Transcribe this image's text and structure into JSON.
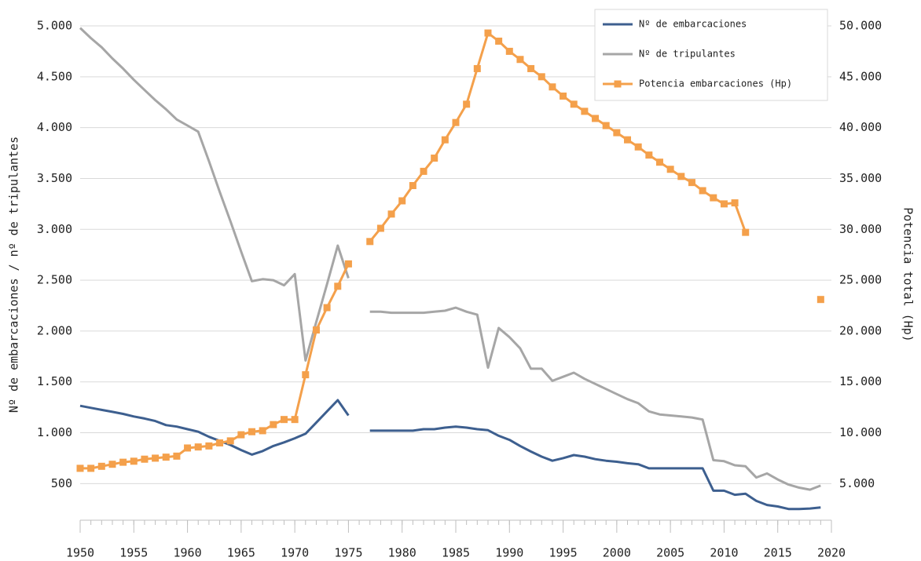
{
  "chart_data": {
    "type": "line",
    "y_label": "Nº de embarcaciones / nº de tripulantes",
    "y2_label": "Potencia total (Hp)",
    "x": [
      1950,
      1951,
      1952,
      1953,
      1954,
      1955,
      1956,
      1957,
      1958,
      1959,
      1960,
      1961,
      1962,
      1963,
      1964,
      1965,
      1966,
      1967,
      1968,
      1969,
      1970,
      1971,
      1972,
      1973,
      1974,
      1975,
      1976,
      1977,
      1978,
      1979,
      1980,
      1981,
      1982,
      1983,
      1984,
      1985,
      1986,
      1987,
      1988,
      1989,
      1990,
      1991,
      1992,
      1993,
      1994,
      1995,
      1996,
      1997,
      1998,
      1999,
      2000,
      2001,
      2002,
      2003,
      2004,
      2005,
      2006,
      2007,
      2008,
      2009,
      2010,
      2011,
      2012,
      2013,
      2014,
      2015,
      2016,
      2017,
      2018,
      2019
    ],
    "xlim": [
      1950,
      2020
    ],
    "xticks": [
      1950,
      1955,
      1960,
      1965,
      1970,
      1975,
      1980,
      1985,
      1990,
      1995,
      2000,
      2005,
      2010,
      2015,
      2020
    ],
    "ylim": [
      140,
      5000
    ],
    "yticks": [
      500,
      {
        "value": 1000,
        "label": "1.000"
      },
      {
        "value": 1500,
        "label": "1.500"
      },
      {
        "value": 2000,
        "label": "2.000"
      },
      {
        "value": 2500,
        "label": "2.500"
      },
      {
        "value": 3000,
        "label": "3.000"
      },
      {
        "value": 3500,
        "label": "3.500"
      },
      {
        "value": 4000,
        "label": "4.000"
      },
      {
        "value": 4500,
        "label": "4.500"
      },
      {
        "value": 5000,
        "label": "5.000"
      }
    ],
    "y2lim": [
      1400,
      50000
    ],
    "y2ticks": [
      {
        "value": 5000,
        "label": "5.000"
      },
      {
        "value": 10000,
        "label": "10.000"
      },
      {
        "value": 15000,
        "label": "15.000"
      },
      {
        "value": 20000,
        "label": "20.000"
      },
      {
        "value": 25000,
        "label": "25.000"
      },
      {
        "value": 30000,
        "label": "30.000"
      },
      {
        "value": 35000,
        "label": "35.000"
      },
      {
        "value": 40000,
        "label": "40.000"
      },
      {
        "value": 45000,
        "label": "45.000"
      },
      {
        "value": 50000,
        "label": "50.000"
      }
    ],
    "grid": true,
    "legend": "top-right",
    "series": [
      {
        "name": "Nº de embarcaciones",
        "color": "#3d5f8f",
        "values": [
          1265,
          1245,
          1225,
          1205,
          1185,
          1160,
          1140,
          1115,
          1075,
          1060,
          1035,
          1010,
          960,
          920,
          880,
          830,
          785,
          820,
          870,
          905,
          945,
          990,
          1100,
          1210,
          1320,
          1170,
          null,
          1020,
          1020,
          1020,
          1020,
          1020,
          1035,
          1035,
          1050,
          1060,
          1050,
          1035,
          1025,
          970,
          930,
          870,
          815,
          765,
          725,
          750,
          780,
          765,
          740,
          725,
          715,
          700,
          690,
          650,
          650,
          650,
          650,
          650,
          650,
          430,
          430,
          390,
          400,
          330,
          290,
          275,
          250,
          250,
          255,
          265
        ]
      },
      {
        "name": "Nº de tripulantes",
        "color": "#a6a6a6",
        "values": [
          4980,
          4880,
          4790,
          4680,
          4580,
          4470,
          4370,
          4270,
          4180,
          4080,
          4020,
          3960,
          3670,
          3370,
          3080,
          2780,
          2490,
          2510,
          2500,
          2450,
          2560,
          1710,
          2090,
          2460,
          2840,
          2520,
          null,
          2190,
          2190,
          2180,
          2180,
          2180,
          2180,
          2190,
          2200,
          2230,
          2190,
          2160,
          1640,
          2030,
          1940,
          1830,
          1630,
          1630,
          1510,
          1550,
          1590,
          1530,
          1480,
          1430,
          1380,
          1330,
          1290,
          1210,
          1180,
          1170,
          1160,
          1150,
          1130,
          730,
          720,
          680,
          670,
          560,
          600,
          540,
          490,
          460,
          440,
          480
        ]
      },
      {
        "name": "Potencia embarcaciones (Hp)",
        "color": "#f4a04b",
        "axis": "y2",
        "marker": "square",
        "values": [
          6500,
          6500,
          6700,
          6900,
          7100,
          7200,
          7400,
          7500,
          7600,
          7700,
          8500,
          8600,
          8700,
          9000,
          9200,
          9800,
          10100,
          10200,
          10800,
          11300,
          11300,
          15700,
          20100,
          22300,
          24400,
          26600,
          null,
          28800,
          30100,
          31500,
          32800,
          34300,
          35700,
          37000,
          38800,
          40500,
          42300,
          45800,
          49300,
          48500,
          47500,
          46700,
          45800,
          45000,
          44000,
          43100,
          42300,
          41600,
          40900,
          40200,
          39500,
          38800,
          38100,
          37300,
          36600,
          35900,
          35200,
          34600,
          33800,
          33100,
          32500,
          32600,
          29700,
          null,
          null,
          null,
          null,
          null,
          null,
          23100
        ]
      }
    ]
  }
}
